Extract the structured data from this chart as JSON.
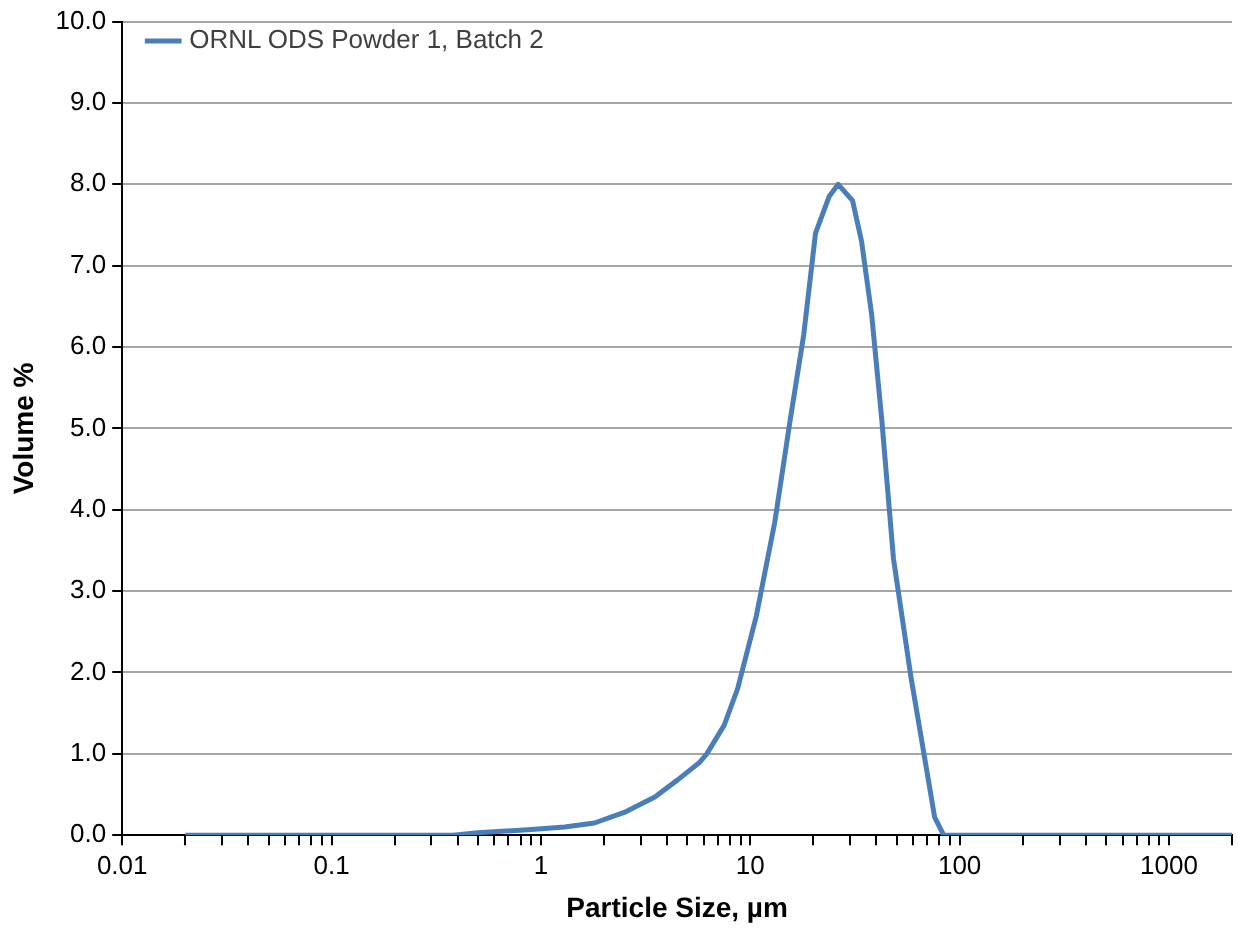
{
  "chart_data": {
    "type": "line",
    "xlabel": "Particle Size, µm",
    "ylabel": "Volume %",
    "log": "x",
    "grid": "y",
    "legend": "top left",
    "marker": "none",
    "line_style": "solid",
    "series": [
      {
        "name": "ORNL ODS Powder 1, Batch 2",
        "color": "#4a7ebb",
        "x": [
          0.02,
          0.38,
          0.5,
          0.9,
          1.3,
          1.8,
          2.5,
          3.5,
          4.5,
          5.7,
          6.2,
          7.5,
          8.7,
          10.7,
          13.1,
          15.5,
          18,
          20.5,
          23.8,
          26.3,
          30.8,
          34,
          38,
          42.5,
          48.3,
          58.5,
          76,
          84,
          100,
          1000,
          2000
        ],
        "values": [
          0,
          0,
          0.03,
          0.07,
          0.1,
          0.15,
          0.28,
          0.47,
          0.68,
          0.89,
          1.0,
          1.35,
          1.8,
          2.7,
          3.85,
          5.1,
          6.15,
          7.4,
          7.85,
          8.0,
          7.8,
          7.3,
          6.4,
          5.1,
          3.4,
          1.95,
          0.22,
          0,
          0,
          0,
          0
        ]
      }
    ],
    "xlim": [
      0.01,
      2000
    ],
    "xticks": [
      0.01,
      {
        "value": 0.02,
        "label": null
      },
      {
        "value": 0.03,
        "label": null
      },
      {
        "value": 0.04,
        "label": null
      },
      {
        "value": 0.05,
        "label": null
      },
      {
        "value": 0.06,
        "label": null
      },
      {
        "value": 0.07,
        "label": null
      },
      {
        "value": 0.08,
        "label": null
      },
      {
        "value": 0.09,
        "label": null
      },
      0.1,
      {
        "value": 0.2,
        "label": null
      },
      {
        "value": 0.3,
        "label": null
      },
      {
        "value": 0.4,
        "label": null
      },
      {
        "value": 0.5,
        "label": null
      },
      {
        "value": 0.6,
        "label": null
      },
      {
        "value": 0.7,
        "label": null
      },
      {
        "value": 0.8,
        "label": null
      },
      {
        "value": 0.9,
        "label": null
      },
      1,
      {
        "value": 2,
        "label": null
      },
      {
        "value": 3,
        "label": null
      },
      {
        "value": 4,
        "label": null
      },
      {
        "value": 5,
        "label": null
      },
      {
        "value": 6,
        "label": null
      },
      {
        "value": 7,
        "label": null
      },
      {
        "value": 8,
        "label": null
      },
      {
        "value": 9,
        "label": null
      },
      10,
      {
        "value": 20,
        "label": null
      },
      {
        "value": 30,
        "label": null
      },
      {
        "value": 40,
        "label": null
      },
      {
        "value": 50,
        "label": null
      },
      {
        "value": 60,
        "label": null
      },
      {
        "value": 70,
        "label": null
      },
      {
        "value": 80,
        "label": null
      },
      {
        "value": 90,
        "label": null
      },
      100,
      {
        "value": 200,
        "label": null
      },
      {
        "value": 300,
        "label": null
      },
      {
        "value": 400,
        "label": null
      },
      {
        "value": 500,
        "label": null
      },
      {
        "value": 600,
        "label": null
      },
      {
        "value": 700,
        "label": null
      },
      {
        "value": 800,
        "label": null
      },
      {
        "value": 900,
        "label": null
      },
      1000,
      {
        "value": 2000,
        "label": null
      }
    ],
    "ylim": [
      0,
      10
    ],
    "yticks": [
      {
        "value": 0,
        "label": "0.0"
      },
      {
        "value": 1,
        "label": "1.0"
      },
      {
        "value": 2,
        "label": "2.0"
      },
      {
        "value": 3,
        "label": "3.0"
      },
      {
        "value": 4,
        "label": "4.0"
      },
      {
        "value": 5,
        "label": "5.0"
      },
      {
        "value": 6,
        "label": "6.0"
      },
      {
        "value": 7,
        "label": "7.0"
      },
      {
        "value": 8,
        "label": "8.0"
      },
      {
        "value": 9,
        "label": "9.0"
      },
      {
        "value": 10,
        "label": "10.0"
      }
    ]
  }
}
